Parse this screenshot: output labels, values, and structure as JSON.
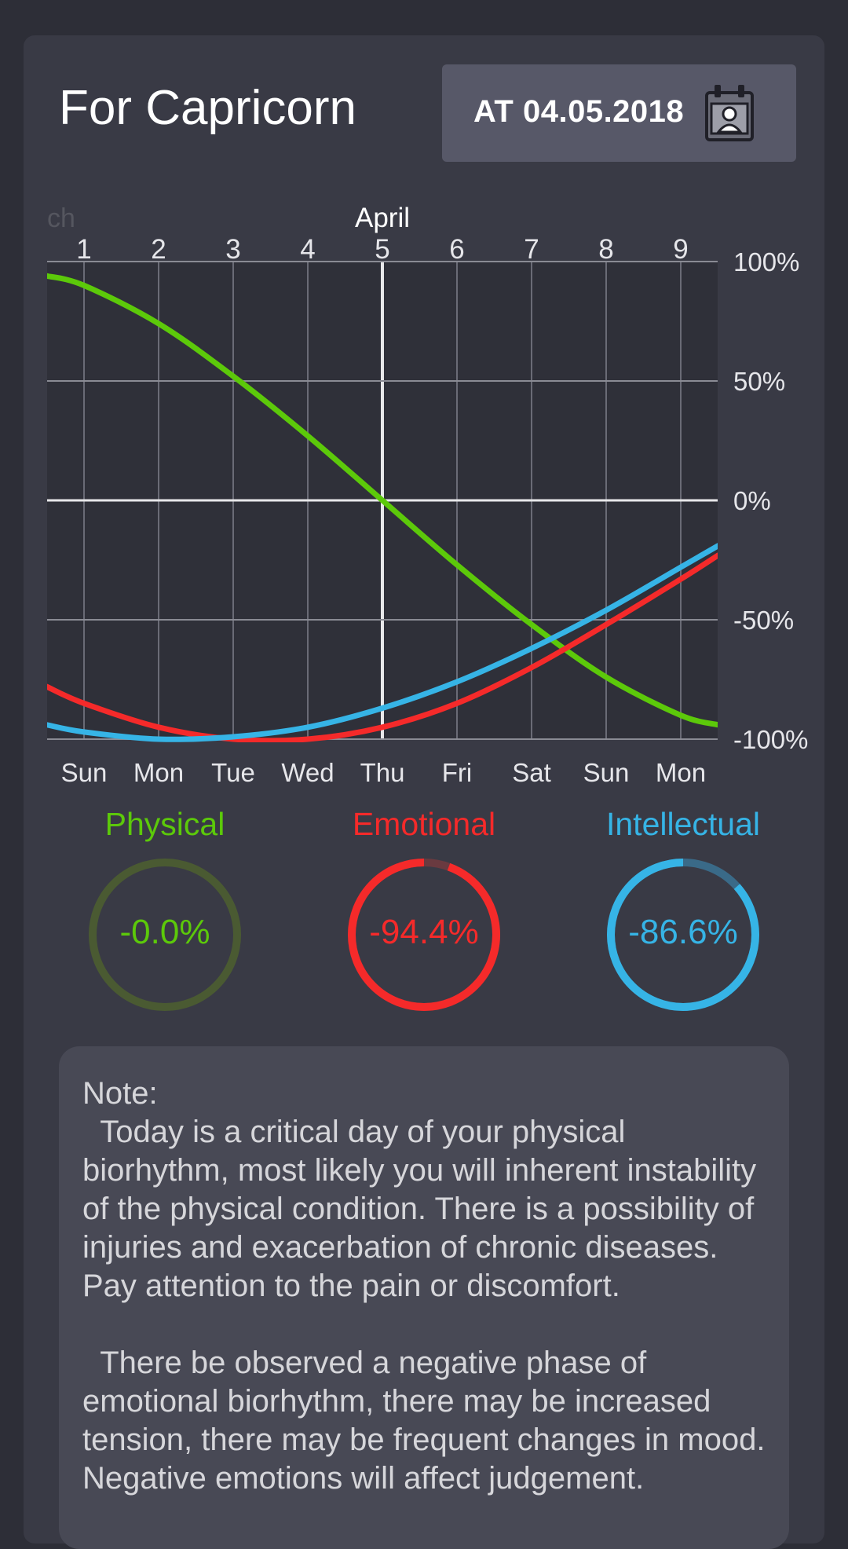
{
  "header": {
    "title": "For Capricorn",
    "date_button_label": "AT 04.05.2018"
  },
  "chart_data": {
    "type": "line",
    "month_label": "April",
    "month_label_faded": "ch",
    "x_day_numbers": [
      "1",
      "2",
      "3",
      "4",
      "5",
      "6",
      "7",
      "8",
      "9"
    ],
    "x_weekdays": [
      "Sun",
      "Mon",
      "Tue",
      "Wed",
      "Thu",
      "Fri",
      "Sat",
      "Sun",
      "Mon"
    ],
    "y_tick_labels": [
      "100%",
      "50%",
      "0%",
      "-50%",
      "-100%"
    ],
    "y_ticks": [
      100,
      50,
      0,
      -50,
      -100
    ],
    "ylim": [
      -100,
      100
    ],
    "xlim": [
      0.5,
      9.5
    ],
    "highlight_day": 5,
    "series": [
      {
        "name": "Physical",
        "color": "#5cc90a",
        "x": [
          0.5,
          1,
          2,
          3,
          4,
          5,
          6,
          7,
          8,
          9,
          9.5
        ],
        "y": [
          94,
          90,
          74,
          52,
          27,
          0,
          -27,
          -52,
          -74,
          -90,
          -94
        ]
      },
      {
        "name": "Emotional",
        "color": "#f52a2a",
        "x": [
          0.5,
          1,
          2,
          3,
          4,
          5,
          6,
          7,
          8,
          9,
          9.5
        ],
        "y": [
          -78,
          -85,
          -95,
          -100,
          -100,
          -95,
          -85,
          -70,
          -52,
          -33,
          -23
        ]
      },
      {
        "name": "Intellectual",
        "color": "#36b4e6",
        "x": [
          0.5,
          1,
          2,
          3,
          4,
          5,
          6,
          7,
          8,
          9,
          9.5
        ],
        "y": [
          -94,
          -97,
          -100,
          -99,
          -95,
          -87,
          -76,
          -62,
          -46,
          -28,
          -19
        ]
      }
    ]
  },
  "gauges": [
    {
      "label": "Physical",
      "value_text": "-0.0%",
      "color": "#5cc90a",
      "track": "#4a5a32",
      "fraction": 0.0
    },
    {
      "label": "Emotional",
      "value_text": "-94.4%",
      "color": "#f52a2a",
      "track": "#6a3a40",
      "fraction": 0.944
    },
    {
      "label": "Intellectual",
      "value_text": "-86.6%",
      "color": "#36b4e6",
      "track": "#3a6a88",
      "fraction": 0.866
    }
  ],
  "note": {
    "text": "Note:\n  Today is a critical day of your physical biorhythm, most likely you will inherent instability of the physical condition. There is a possibility of injuries and exacerbation of chronic diseases. Pay attention to the pain or discomfort.\n\n  There be observed a negative phase of emotional biorhythm, there may be increased tension, there may be frequent changes in mood. Negative emotions will affect judgement."
  }
}
